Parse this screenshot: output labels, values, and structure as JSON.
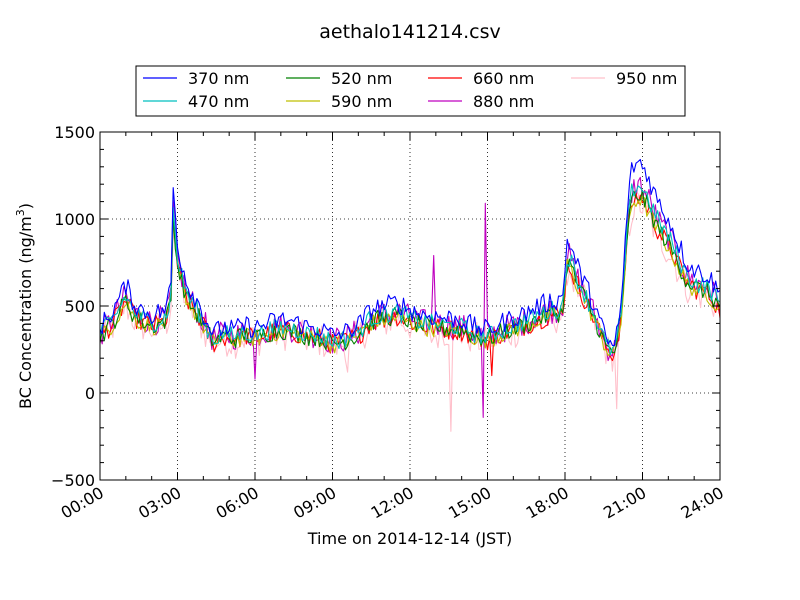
{
  "chart_data": {
    "type": "line",
    "title": "aethalo141214.csv",
    "xlabel": "Time on 2014-12-14 (JST)",
    "ylabel": "BC Concentration (ng/m³)",
    "ylabel_main": "BC Concentration (ng/m",
    "ylabel_exp": "3",
    "ylabel_end": ")",
    "xlim_hours": [
      0,
      24
    ],
    "ylim": [
      -500,
      1500
    ],
    "yticks": [
      -500,
      0,
      500,
      1000,
      1500
    ],
    "ytick_labels": [
      "−500",
      "0",
      "500",
      "1000",
      "1500"
    ],
    "xticks_hours": [
      0,
      3,
      6,
      9,
      12,
      15,
      18,
      21,
      24
    ],
    "xtick_labels": [
      "00:00",
      "03:00",
      "06:00",
      "09:00",
      "12:00",
      "15:00",
      "18:00",
      "21:00",
      "24:00"
    ],
    "grid": true,
    "legend_position": "top",
    "series": [
      {
        "name": "370 nm",
        "color": "#0000ff"
      },
      {
        "name": "470 nm",
        "color": "#00bfbf"
      },
      {
        "name": "520 nm",
        "color": "#008000"
      },
      {
        "name": "590 nm",
        "color": "#bfbf00"
      },
      {
        "name": "660 nm",
        "color": "#ff0000"
      },
      {
        "name": "880 nm",
        "color": "#bf00bf"
      },
      {
        "name": "950 nm",
        "color": "#ffc0cb"
      }
    ],
    "profile": [
      [
        0.0,
        380
      ],
      [
        0.5,
        470
      ],
      [
        0.8,
        560
      ],
      [
        1.0,
        620
      ],
      [
        1.3,
        520
      ],
      [
        1.6,
        480
      ],
      [
        2.0,
        450
      ],
      [
        2.4,
        470
      ],
      [
        2.6,
        500
      ],
      [
        2.75,
        640
      ],
      [
        2.85,
        1280
      ],
      [
        2.95,
        900
      ],
      [
        3.1,
        780
      ],
      [
        3.4,
        620
      ],
      [
        3.8,
        520
      ],
      [
        4.1,
        420
      ],
      [
        4.4,
        340
      ],
      [
        4.8,
        380
      ],
      [
        5.2,
        360
      ],
      [
        5.6,
        390
      ],
      [
        6.0,
        370
      ],
      [
        6.5,
        400
      ],
      [
        7.0,
        420
      ],
      [
        7.5,
        410
      ],
      [
        8.0,
        380
      ],
      [
        8.5,
        370
      ],
      [
        9.0,
        330
      ],
      [
        9.5,
        350
      ],
      [
        10.0,
        390
      ],
      [
        10.5,
        480
      ],
      [
        11.0,
        500
      ],
      [
        11.5,
        520
      ],
      [
        12.0,
        480
      ],
      [
        12.5,
        450
      ],
      [
        13.0,
        440
      ],
      [
        13.5,
        430
      ],
      [
        14.0,
        420
      ],
      [
        14.5,
        380
      ],
      [
        15.0,
        360
      ],
      [
        15.5,
        400
      ],
      [
        16.0,
        430
      ],
      [
        16.5,
        460
      ],
      [
        17.0,
        500
      ],
      [
        17.5,
        530
      ],
      [
        17.9,
        540
      ],
      [
        18.1,
        900
      ],
      [
        18.4,
        760
      ],
      [
        18.8,
        620
      ],
      [
        19.2,
        480
      ],
      [
        19.6,
        300
      ],
      [
        19.9,
        260
      ],
      [
        20.2,
        520
      ],
      [
        20.4,
        1050
      ],
      [
        20.6,
        1300
      ],
      [
        20.9,
        1330
      ],
      [
        21.2,
        1250
      ],
      [
        21.6,
        1100
      ],
      [
        22.0,
        1000
      ],
      [
        22.3,
        900
      ],
      [
        22.7,
        750
      ],
      [
        23.1,
        700
      ],
      [
        23.5,
        680
      ],
      [
        23.8,
        620
      ],
      [
        24.0,
        560
      ]
    ],
    "series_scale": [
      1.0,
      0.9,
      0.86,
      0.84,
      0.85,
      0.9,
      0.82
    ],
    "series_noise": [
      60,
      55,
      55,
      50,
      60,
      80,
      100
    ],
    "spikes": [
      {
        "series": 6,
        "x": 13.6,
        "y": -220
      },
      {
        "series": 5,
        "x": 14.8,
        "y": -140
      },
      {
        "series": 5,
        "x": 14.9,
        "y": 1090
      },
      {
        "series": 6,
        "x": 20.0,
        "y": -90
      },
      {
        "series": 6,
        "x": 12.9,
        "y": 320
      },
      {
        "series": 5,
        "x": 6.0,
        "y": 80
      },
      {
        "series": 6,
        "x": 9.6,
        "y": 120
      },
      {
        "series": 5,
        "x": 12.9,
        "y": 790
      },
      {
        "series": 4,
        "x": 15.2,
        "y": 100
      }
    ]
  }
}
